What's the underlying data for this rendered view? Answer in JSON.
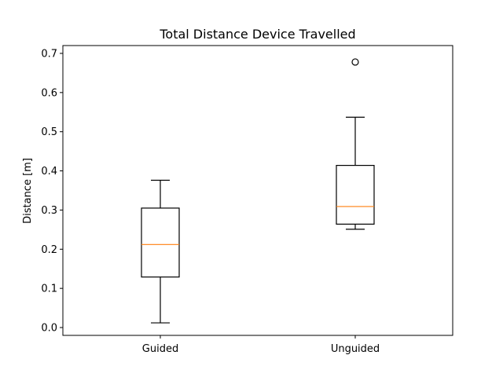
{
  "chart_data": {
    "type": "boxplot",
    "title": "Total Distance Device Travelled",
    "xlabel": "",
    "ylabel": "Distance [m]",
    "ylim": [
      -0.02,
      0.72
    ],
    "yticks": [
      "0.0",
      "0.1",
      "0.2",
      "0.3",
      "0.4",
      "0.5",
      "0.6",
      "0.7"
    ],
    "ytick_values": [
      0.0,
      0.1,
      0.2,
      0.3,
      0.4,
      0.5,
      0.6,
      0.7
    ],
    "categories": [
      "Guided",
      "Unguided"
    ],
    "boxes": [
      {
        "name": "Guided",
        "whisker_low": 0.012,
        "q1": 0.129,
        "median": 0.212,
        "q3": 0.305,
        "whisker_high": 0.376,
        "outliers": []
      },
      {
        "name": "Unguided",
        "whisker_low": 0.251,
        "q1": 0.264,
        "median": 0.309,
        "q3": 0.414,
        "whisker_high": 0.537,
        "outliers": [
          0.678
        ]
      }
    ],
    "colors": {
      "box": "#000000",
      "median": "#ff7f0e",
      "axes": "#000000",
      "background": "#ffffff"
    },
    "grid": false,
    "legend": "none"
  }
}
